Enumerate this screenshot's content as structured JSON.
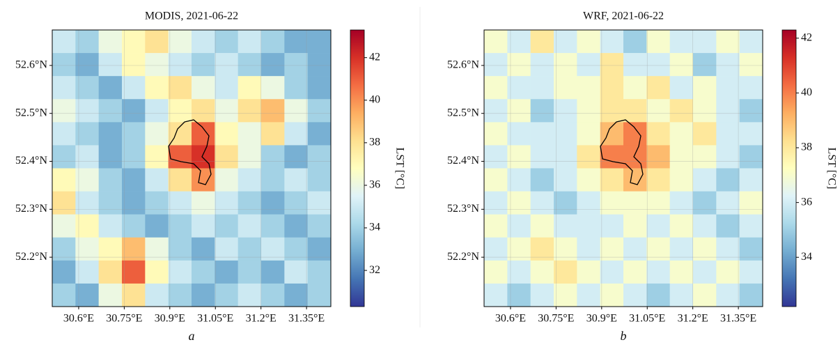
{
  "chart_data": [
    {
      "type": "heatmap",
      "title": "MODIS, 2021-06-22",
      "caption": "a",
      "colorbar_label": "LST [°C]",
      "xlim": [
        30.513,
        31.43
      ],
      "ylim": [
        52.097,
        52.674
      ],
      "clim": [
        30.3,
        43.3
      ],
      "xticks": [
        {
          "value": 30.6,
          "label": "30.6°E"
        },
        {
          "value": 30.75,
          "label": "30.75°E"
        },
        {
          "value": 30.9,
          "label": "30.9°E"
        },
        {
          "value": 31.05,
          "label": "31.05°E"
        },
        {
          "value": 31.2,
          "label": "31.2°E"
        },
        {
          "value": 31.35,
          "label": "31.35°E"
        }
      ],
      "yticks": [
        {
          "value": 52.2,
          "label": "52.2°N"
        },
        {
          "value": 52.3,
          "label": "52.3°N"
        },
        {
          "value": 52.4,
          "label": "52.4°N"
        },
        {
          "value": 52.5,
          "label": "52.5°N"
        },
        {
          "value": 52.6,
          "label": "52.6°N"
        }
      ],
      "cticks": [
        32,
        34,
        36,
        38,
        40,
        42
      ],
      "grid": true,
      "colors": [
        "#313695",
        "#4575b4",
        "#74add1",
        "#abd9e9",
        "#e0f3f8",
        "#ffffbf",
        "#fee090",
        "#fdae61",
        "#f46d43",
        "#d73027",
        "#a50026"
      ],
      "z": [
        [
          35,
          34,
          36,
          37,
          38,
          36,
          35,
          34,
          35,
          34,
          33,
          33
        ],
        [
          34,
          33,
          35,
          37,
          36,
          35,
          34,
          35,
          34,
          33,
          34,
          33
        ],
        [
          35,
          34,
          33,
          35,
          37,
          38,
          36,
          35,
          37,
          36,
          34,
          33
        ],
        [
          36,
          35,
          34,
          33,
          35,
          37,
          38,
          36,
          38,
          39,
          36,
          34
        ],
        [
          35,
          34,
          33,
          34,
          36,
          38,
          41,
          37,
          36,
          38,
          35,
          33
        ],
        [
          34,
          35,
          33,
          34,
          37,
          41,
          42,
          38,
          36,
          34,
          33,
          34
        ],
        [
          37,
          36,
          34,
          33,
          35,
          38,
          40,
          36,
          35,
          34,
          35,
          34
        ],
        [
          38,
          35,
          34,
          33,
          34,
          35,
          36,
          35,
          34,
          33,
          34,
          35
        ],
        [
          36,
          37,
          35,
          34,
          33,
          34,
          35,
          34,
          35,
          34,
          33,
          34
        ],
        [
          34,
          36,
          37,
          39,
          36,
          34,
          33,
          35,
          34,
          35,
          34,
          33
        ],
        [
          33,
          35,
          38,
          41,
          37,
          35,
          34,
          33,
          34,
          33,
          35,
          34
        ],
        [
          34,
          33,
          36,
          38,
          35,
          34,
          33,
          34,
          35,
          34,
          33,
          34
        ]
      ]
    },
    {
      "type": "heatmap",
      "title": "WRF, 2021-06-22",
      "caption": "b",
      "colorbar_label": "LST [°C]",
      "xlim": [
        30.513,
        31.43
      ],
      "ylim": [
        52.097,
        52.674
      ],
      "clim": [
        32.2,
        42.3
      ],
      "xticks": [
        {
          "value": 30.6,
          "label": "30.6°E"
        },
        {
          "value": 30.75,
          "label": "30.75°E"
        },
        {
          "value": 30.9,
          "label": "30.9°E"
        },
        {
          "value": 31.05,
          "label": "31.05°E"
        },
        {
          "value": 31.2,
          "label": "31.2°E"
        },
        {
          "value": 31.35,
          "label": "31.35°E"
        }
      ],
      "yticks": [
        {
          "value": 52.2,
          "label": "52.2°N"
        },
        {
          "value": 52.3,
          "label": "52.3°N"
        },
        {
          "value": 52.4,
          "label": "52.4°N"
        },
        {
          "value": 52.5,
          "label": "52.5°N"
        },
        {
          "value": 52.6,
          "label": "52.6°N"
        }
      ],
      "cticks": [
        34,
        36,
        38,
        40,
        42
      ],
      "grid": true,
      "colors": [
        "#313695",
        "#4575b4",
        "#74add1",
        "#abd9e9",
        "#e0f3f8",
        "#ffffbf",
        "#fee090",
        "#fdae61",
        "#f46d43",
        "#d73027",
        "#a50026"
      ],
      "z": [
        [
          37,
          36,
          38,
          36,
          37,
          36,
          35,
          37,
          36,
          36,
          37,
          36
        ],
        [
          36,
          37,
          36,
          37,
          36,
          38,
          36,
          36,
          37,
          35,
          36,
          37
        ],
        [
          37,
          36,
          36,
          37,
          37,
          38,
          37,
          38,
          36,
          37,
          36,
          36
        ],
        [
          36,
          37,
          35,
          36,
          37,
          38,
          38,
          37,
          38,
          37,
          36,
          35
        ],
        [
          37,
          36,
          36,
          36,
          37,
          39,
          40,
          38,
          37,
          38,
          36,
          36
        ],
        [
          36,
          37,
          36,
          36,
          38,
          40,
          40,
          39,
          37,
          37,
          36,
          35
        ],
        [
          37,
          36,
          35,
          36,
          37,
          38,
          39,
          38,
          37,
          36,
          35,
          36
        ],
        [
          36,
          37,
          36,
          35,
          36,
          37,
          37,
          37,
          36,
          35,
          36,
          37
        ],
        [
          37,
          36,
          37,
          36,
          36,
          36,
          37,
          36,
          37,
          36,
          35,
          36
        ],
        [
          36,
          37,
          38,
          37,
          36,
          37,
          36,
          37,
          36,
          37,
          36,
          35
        ],
        [
          37,
          36,
          37,
          38,
          37,
          36,
          37,
          36,
          37,
          36,
          37,
          36
        ],
        [
          36,
          35,
          36,
          37,
          36,
          37,
          36,
          35,
          36,
          37,
          36,
          35
        ]
      ]
    }
  ]
}
